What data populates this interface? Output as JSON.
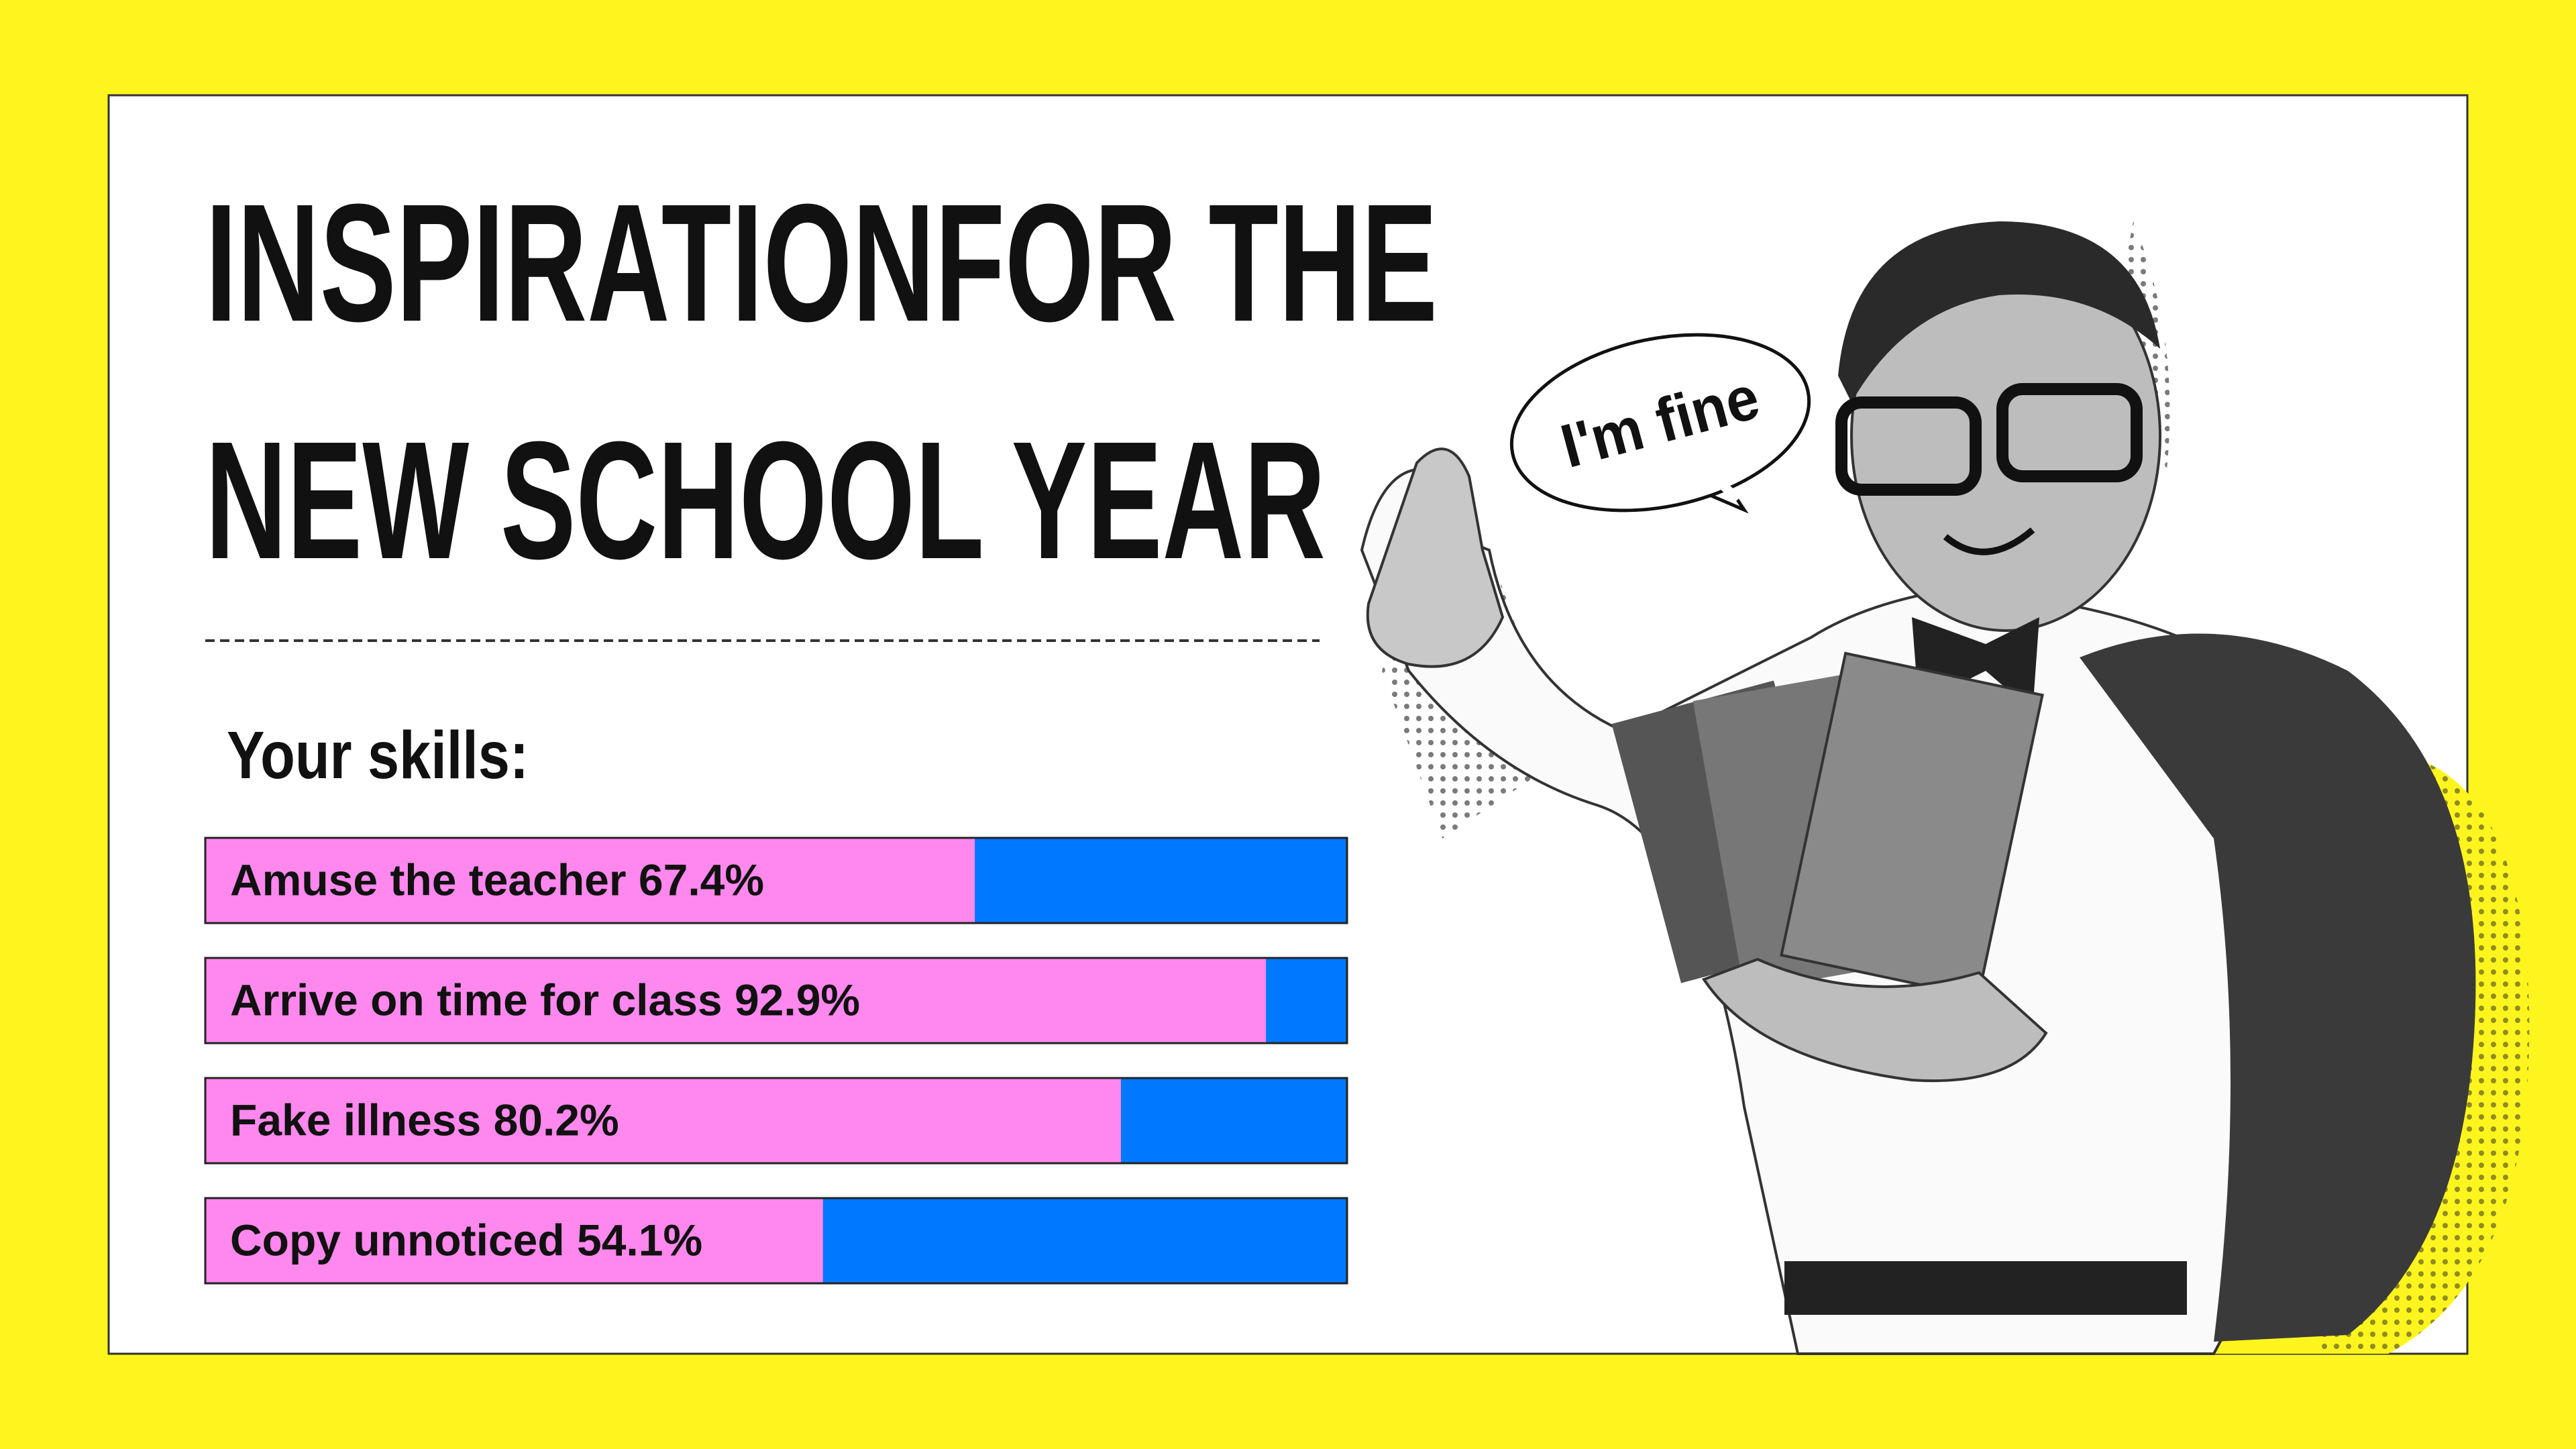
{
  "title_lines": [
    "INSPIRATIONFOR THE",
    "NEW SCHOOL YEAR"
  ],
  "speech_bubble": "I'm fine",
  "chart_data": {
    "type": "bar",
    "orientation": "horizontal",
    "title": "Your skills:",
    "categories": [
      "Amuse the teacher",
      "Arrive on time for class",
      "Fake illness",
      "Copy unnoticed"
    ],
    "values": [
      67.4,
      92.9,
      80.2,
      54.1
    ],
    "value_labels": [
      "67.4%",
      "92.9%",
      "80.2%",
      "54.1%"
    ],
    "xlim": [
      0,
      100
    ],
    "color": "#ff88ee",
    "track_color": "#0078ff"
  }
}
